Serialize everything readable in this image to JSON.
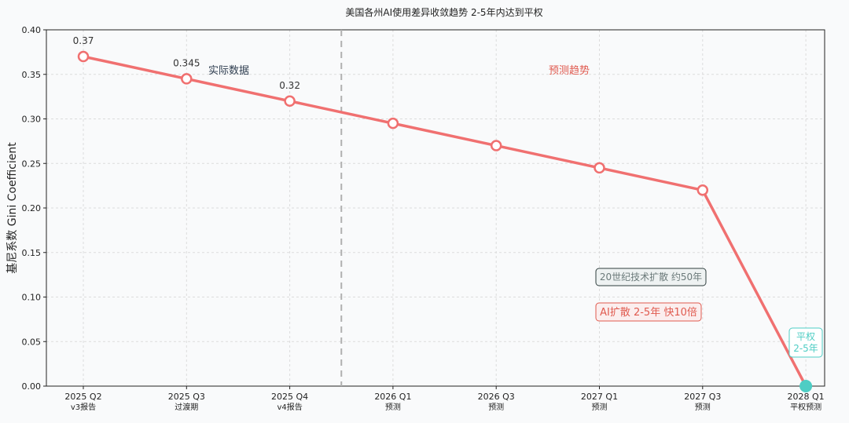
{
  "chart_data": {
    "type": "line",
    "title": "美国各州AI使用差异收敛趋势 2-5年内达到平权",
    "ylabel": "基尼系数 Gini Coefficient",
    "xlabel": "",
    "ylim": [
      0,
      0.4
    ],
    "yticks": [
      "0.00",
      "0.05",
      "0.10",
      "0.15",
      "0.20",
      "0.25",
      "0.30",
      "0.35",
      "0.40"
    ],
    "grid": true,
    "categories": [
      {
        "period": "2025 Q2",
        "note": "v3报告"
      },
      {
        "period": "2025 Q3",
        "note": "过渡期"
      },
      {
        "period": "2025 Q4",
        "note": "v4报告"
      },
      {
        "period": "2026 Q1",
        "note": "预测"
      },
      {
        "period": "2026 Q3",
        "note": "预测"
      },
      {
        "period": "2027 Q1",
        "note": "预测"
      },
      {
        "period": "2027 Q3",
        "note": "预测"
      },
      {
        "period": "2028 Q1",
        "note": "平权预测"
      }
    ],
    "series": [
      {
        "values": [
          0.37,
          0.345,
          0.32,
          0.295,
          0.27,
          0.245,
          0.22,
          0.0
        ],
        "color": "#f07070"
      }
    ],
    "data_labels": [
      "0.37",
      "0.345",
      "0.32"
    ],
    "divider_between": [
      2,
      3
    ],
    "region_labels": {
      "actual": "实际数据",
      "forecast": "预测趋势"
    },
    "annotations": {
      "century_box": "20世纪技术扩散 约50年",
      "ai_box": "AI扩散 2-5年 快10倍",
      "parity_box_line1": "平权",
      "parity_box_line2": "2-5年"
    },
    "colors": {
      "line": "#f07070",
      "endpoint": "#4ecdc4",
      "actual_label": "#2f3e50",
      "forecast_label": "#e05a4f",
      "divider": "#b0b0b0",
      "grid": "#dcdcdc",
      "century_box_text": "#6b7a7a",
      "ai_box_text": "#e05a4f",
      "parity_text": "#4ecdc4"
    }
  }
}
